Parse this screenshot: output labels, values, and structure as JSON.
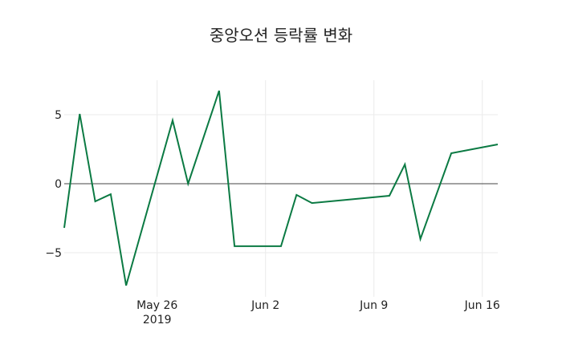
{
  "chart_data": {
    "type": "line",
    "title": "중앙오션 등락률 변화",
    "xlabel": "",
    "ylabel": "",
    "x": [
      "2019-05-20",
      "2019-05-21",
      "2019-05-22",
      "2019-05-23",
      "2019-05-24",
      "2019-05-27",
      "2019-05-28",
      "2019-05-30",
      "2019-05-31",
      "2019-06-03",
      "2019-06-04",
      "2019-06-05",
      "2019-06-10",
      "2019-06-11",
      "2019-06-12",
      "2019-06-14",
      "2019-06-17"
    ],
    "series": [
      {
        "name": "등락률",
        "color": "#0b7a43",
        "values": [
          -3.2,
          5.06,
          -1.28,
          -0.76,
          -7.38,
          4.59,
          0.0,
          6.74,
          -4.53,
          -4.53,
          -0.81,
          -1.4,
          -0.87,
          1.4,
          -4.01,
          2.21,
          2.85
        ]
      }
    ],
    "xticks": [
      {
        "date": "2019-05-26",
        "label": "May 26",
        "sublabel": "2019"
      },
      {
        "date": "2019-06-02",
        "label": "Jun 2",
        "sublabel": ""
      },
      {
        "date": "2019-06-09",
        "label": "Jun 9",
        "sublabel": ""
      },
      {
        "date": "2019-06-16",
        "label": "Jun 16",
        "sublabel": ""
      }
    ],
    "yticks": [
      5,
      0,
      -5
    ],
    "ytick_labels": [
      "5",
      "0",
      "−5"
    ],
    "ylim": [
      -8.4,
      7.5
    ],
    "xlim": [
      "2019-05-20",
      "2019-06-17"
    ],
    "grid": true,
    "zeroline": true,
    "legend": false
  }
}
